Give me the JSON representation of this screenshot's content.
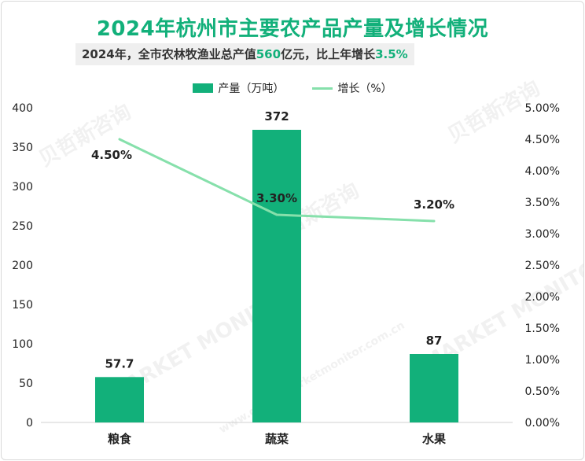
{
  "chart_data": {
    "type": "bar+line",
    "title": "2024年杭州市主要农产品产量及增长情况",
    "subtitle": {
      "prefix": "2024年，全市农林牧渔业总产值",
      "value": "560",
      "mid": "亿元，比上年增长",
      "growth": "3.5%"
    },
    "categories": [
      "粮食",
      "蔬菜",
      "水果"
    ],
    "series": [
      {
        "name": "产量（万吨）",
        "type": "bar",
        "axis": "left",
        "values": [
          57.7,
          372,
          87
        ],
        "labels": [
          "57.7",
          "372",
          "87"
        ]
      },
      {
        "name": "增长（%）",
        "type": "line",
        "axis": "right",
        "values": [
          4.5,
          3.3,
          3.2
        ],
        "labels": [
          "4.50%",
          "3.30%",
          "3.20%"
        ]
      }
    ],
    "y_left": {
      "min": 0,
      "max": 400,
      "ticks": [
        "0",
        "50",
        "100",
        "150",
        "200",
        "250",
        "300",
        "350",
        "400"
      ]
    },
    "y_right": {
      "min": 0,
      "max": 5,
      "ticks": [
        "0.00%",
        "0.50%",
        "1.00%",
        "1.50%",
        "2.00%",
        "2.50%",
        "3.00%",
        "3.50%",
        "4.00%",
        "4.50%",
        "5.00%"
      ]
    },
    "legend_position": "top-center",
    "grid": false
  },
  "colors": {
    "bar": "#12b07a",
    "line": "#86e0ab",
    "title": "#12b07a"
  },
  "watermark": {
    "brand": "贝哲斯咨询",
    "brand_en": "MARKET MONITOR",
    "site": "www.globalmarketmonitor.com.cn"
  }
}
